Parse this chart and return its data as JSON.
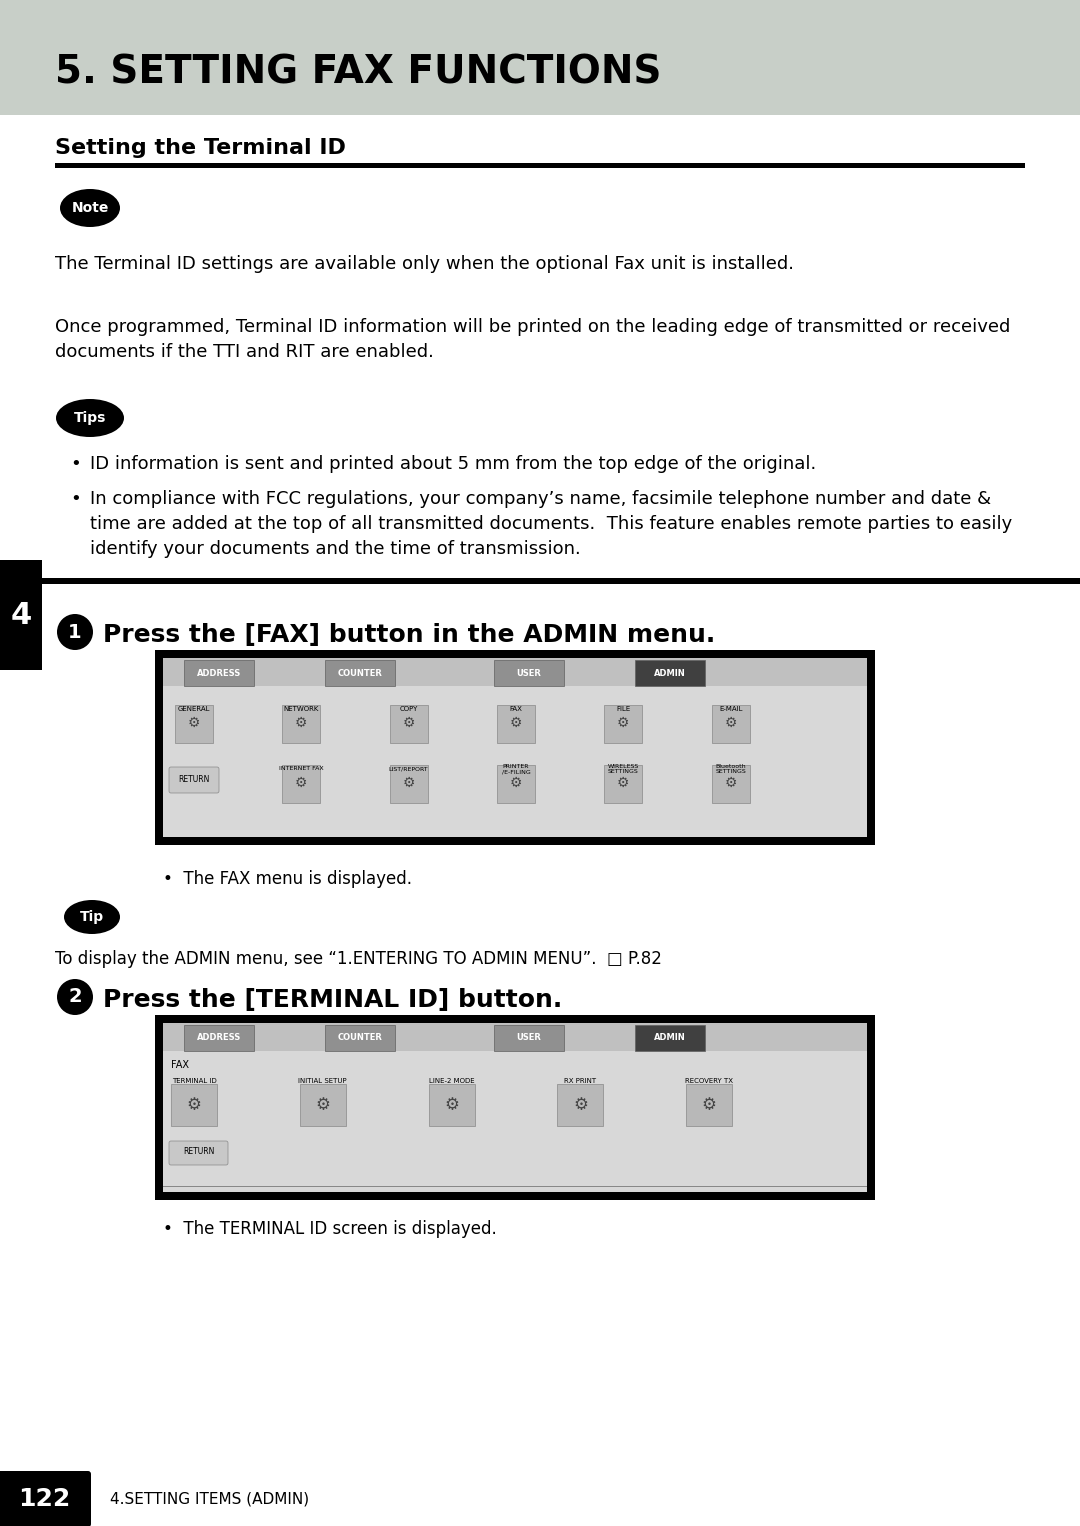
{
  "page_title": "5. SETTING FAX FUNCTIONS",
  "section_title": "Setting the Terminal ID",
  "page_bg": "#ffffff",
  "header_bg": "#c8cfc8",
  "sidebar_bg": "#1a1a1a",
  "sidebar_text": "4",
  "page_number": "122",
  "footer_text": "4.SETTING ITEMS (ADMIN)",
  "note_text": "The Terminal ID settings are available only when the optional Fax unit is installed.",
  "body_text1": "Once programmed, Terminal ID information will be printed on the leading edge of transmitted or received\ndocuments if the TTI and RIT are enabled.",
  "tips_bullet1": "ID information is sent and printed about 5 mm from the top edge of the original.",
  "tips_bullet2": "In compliance with FCC regulations, your company’s name, facsimile telephone number and date &\ntime are added at the top of all transmitted documents.  This feature enables remote parties to easily\nidentify your documents and the time of transmission.",
  "step1_title": "Press the [FAX] button in the ADMIN menu.",
  "step1_tip": "To display the ADMIN menu, see “1.ENTERING TO ADMIN MENU”.  □ P.82",
  "step1_bullet": "The FAX menu is displayed.",
  "step2_title": "Press the [TERMINAL ID] button.",
  "step2_bullet": "The TERMINAL ID screen is displayed.",
  "black": "#000000",
  "white": "#ffffff",
  "dark_gray": "#333333",
  "medium_gray": "#888888",
  "light_gray": "#cccccc"
}
